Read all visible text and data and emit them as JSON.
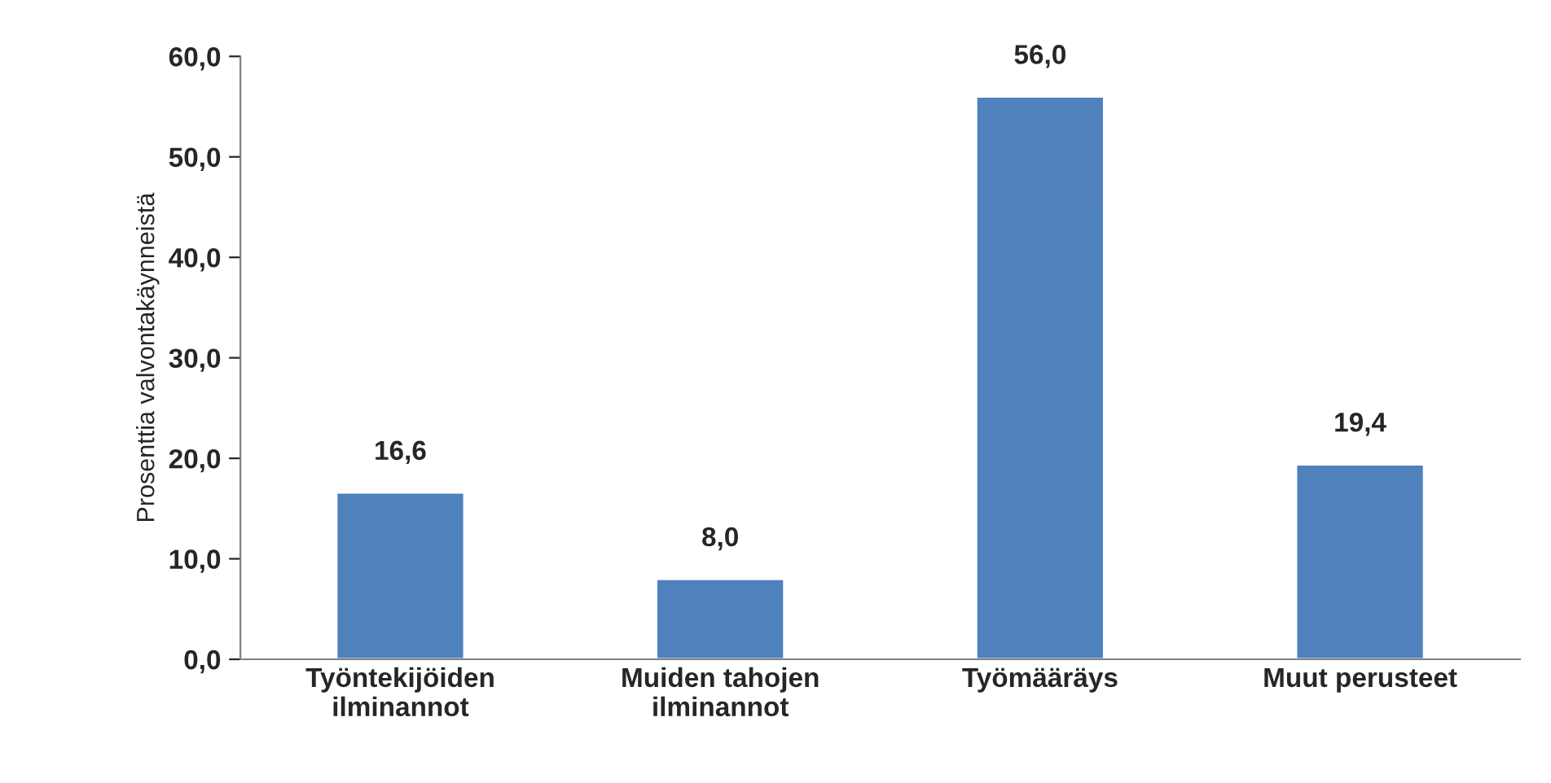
{
  "chart_data": {
    "type": "bar",
    "ylabel": "Prosenttia valvontakäynneistä",
    "categories": [
      "Työntekijöiden\nilminannot",
      "Muiden tahojen\nilminannot",
      "Työmääräys",
      "Muut perusteet"
    ],
    "values": [
      16.6,
      8.0,
      56.0,
      19.4
    ],
    "value_labels": [
      "16,6",
      "8,0",
      "56,0",
      "19,4"
    ],
    "color": "#4f81bd",
    "ylim": [
      0,
      60
    ],
    "yticks": [
      {
        "value": 0,
        "label": "0,0"
      },
      {
        "value": 10,
        "label": "10,0"
      },
      {
        "value": 20,
        "label": "20,0"
      },
      {
        "value": 30,
        "label": "30,0"
      },
      {
        "value": 40,
        "label": "40,0"
      },
      {
        "value": 50,
        "label": "50,0"
      },
      {
        "value": 60,
        "label": "60,0"
      }
    ],
    "grid": false,
    "legend": false
  }
}
